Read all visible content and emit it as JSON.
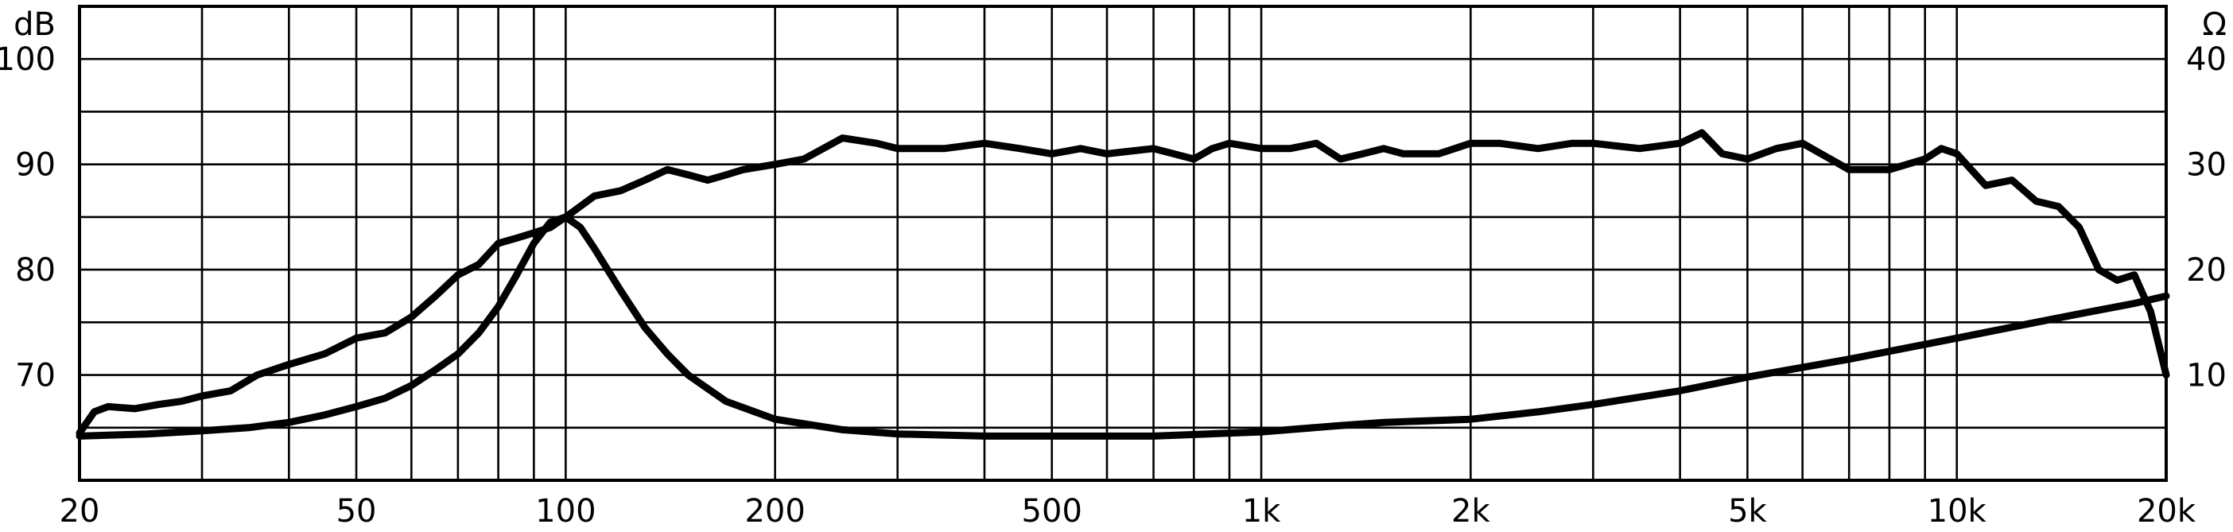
{
  "chart_data": {
    "type": "line",
    "title": "",
    "xlabel": "",
    "x_scale": "log",
    "xlim": [
      20,
      20000
    ],
    "left_axis": {
      "unit_label": "dB",
      "ylim": [
        60,
        105
      ],
      "ticks": [
        70,
        80,
        90,
        100
      ]
    },
    "right_axis": {
      "unit_label": "Ω",
      "ylim": [
        0,
        45
      ],
      "ticks": [
        10,
        20,
        30,
        40
      ]
    },
    "x_ticks": [
      {
        "value": 20,
        "label": "20"
      },
      {
        "value": 50,
        "label": "50"
      },
      {
        "value": 100,
        "label": "100"
      },
      {
        "value": 200,
        "label": "200"
      },
      {
        "value": 500,
        "label": "500"
      },
      {
        "value": 1000,
        "label": "1k"
      },
      {
        "value": 2000,
        "label": "2k"
      },
      {
        "value": 5000,
        "label": "5k"
      },
      {
        "value": 10000,
        "label": "10k"
      },
      {
        "value": 20000,
        "label": "20k"
      }
    ],
    "grid": true,
    "colors": {
      "line": "#000000",
      "grid": "#000000",
      "background": "#ffffff"
    },
    "series": [
      {
        "axis": "left",
        "x": [
          20,
          21,
          22,
          24,
          26,
          28,
          30,
          33,
          36,
          40,
          45,
          50,
          55,
          60,
          65,
          70,
          75,
          80,
          85,
          90,
          95,
          100,
          110,
          120,
          130,
          140,
          150,
          160,
          170,
          180,
          200,
          220,
          250,
          280,
          300,
          350,
          400,
          450,
          500,
          550,
          600,
          700,
          800,
          850,
          900,
          1000,
          1100,
          1200,
          1300,
          1400,
          1500,
          1600,
          1800,
          2000,
          2200,
          2500,
          2800,
          3000,
          3500,
          4000,
          4300,
          4600,
          5000,
          5500,
          6000,
          7000,
          8000,
          9000,
          9500,
          10000,
          11000,
          12000,
          13000,
          14000,
          15000,
          16000,
          17000,
          18000,
          19000,
          20000
        ],
        "y": [
          64.5,
          66.5,
          67.0,
          66.8,
          67.2,
          67.5,
          68.0,
          68.5,
          70.0,
          71.0,
          72.0,
          73.5,
          74.0,
          75.5,
          77.5,
          79.5,
          80.5,
          82.5,
          83.0,
          83.5,
          84.0,
          85.0,
          87.0,
          87.5,
          88.5,
          89.5,
          89.0,
          88.5,
          89.0,
          89.5,
          90.0,
          90.5,
          92.5,
          92.0,
          91.5,
          91.5,
          92.0,
          91.5,
          91.0,
          91.5,
          91.0,
          91.5,
          90.5,
          91.5,
          92.0,
          91.5,
          91.5,
          92.0,
          90.5,
          91.0,
          91.5,
          91.0,
          91.0,
          92.0,
          92.0,
          91.5,
          92.0,
          92.0,
          91.5,
          92.0,
          93.0,
          91.0,
          90.5,
          91.5,
          92.0,
          89.5,
          89.5,
          90.5,
          91.5,
          91.0,
          88.0,
          88.5,
          86.5,
          86.0,
          84.0,
          80.0,
          79.0,
          79.5,
          76.0,
          70.0
        ]
      },
      {
        "axis": "right",
        "x": [
          20,
          25,
          30,
          35,
          40,
          45,
          50,
          55,
          60,
          65,
          70,
          75,
          80,
          85,
          90,
          95,
          100,
          105,
          110,
          120,
          130,
          140,
          150,
          170,
          200,
          250,
          300,
          400,
          500,
          700,
          1000,
          1300,
          1500,
          2000,
          2500,
          3000,
          4000,
          5000,
          7000,
          10000,
          13000,
          15000,
          18000,
          20000
        ],
        "y": [
          4.2,
          4.4,
          4.7,
          5.0,
          5.5,
          6.2,
          7.0,
          7.8,
          9.0,
          10.5,
          12.0,
          14.0,
          16.5,
          19.5,
          22.5,
          24.5,
          25.0,
          24.0,
          22.0,
          18.0,
          14.5,
          12.0,
          10.0,
          7.5,
          5.8,
          4.8,
          4.4,
          4.2,
          4.2,
          4.2,
          4.6,
          5.2,
          5.5,
          5.8,
          6.5,
          7.2,
          8.5,
          9.8,
          11.5,
          13.5,
          15.0,
          15.8,
          16.8,
          17.5
        ]
      }
    ]
  }
}
